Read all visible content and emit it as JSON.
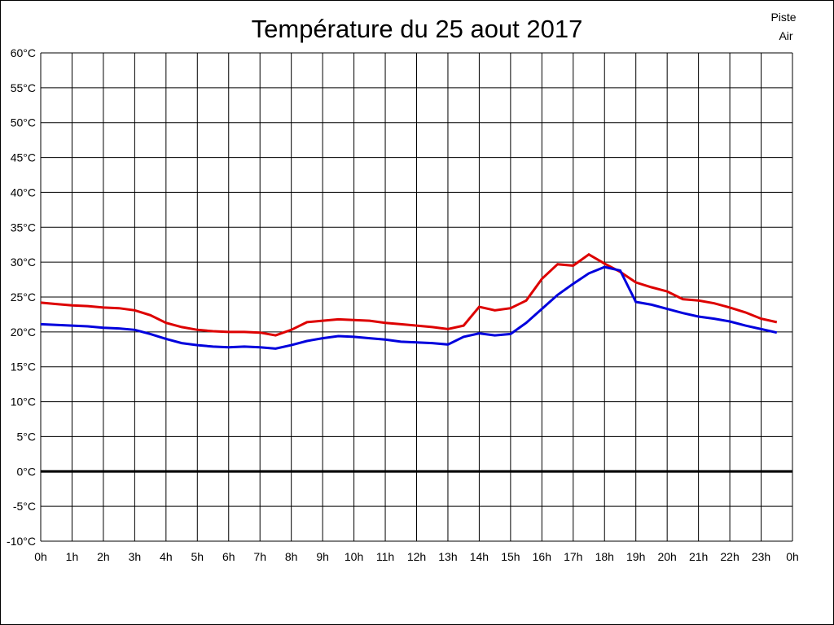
{
  "page": {
    "background": "#ffffff",
    "border_color": "#000000"
  },
  "chart_data": {
    "type": "line",
    "title": "Température du 25 aout 2017",
    "xlabel": "",
    "ylabel": "",
    "grid": true,
    "grid_color": "#000000",
    "x_min": 0,
    "x_max": 24,
    "y_min": -10,
    "y_max": 60,
    "y_tick_step": 5,
    "x_tick_labels": [
      "0h",
      "1h",
      "2h",
      "3h",
      "4h",
      "5h",
      "6h",
      "7h",
      "8h",
      "9h",
      "10h",
      "11h",
      "12h",
      "13h",
      "14h",
      "15h",
      "16h",
      "17h",
      "18h",
      "19h",
      "20h",
      "21h",
      "22h",
      "23h",
      "0h"
    ],
    "y_tick_labels": [
      "60°C",
      "55°C",
      "50°C",
      "45°C",
      "40°C",
      "35°C",
      "30°C",
      "25°C",
      "20°C",
      "15°C",
      "10°C",
      "5°C",
      "0°C",
      "-5°C",
      "-10°C"
    ],
    "zero_line": {
      "value": 0,
      "stroke_width": 3,
      "color": "#000000"
    },
    "x_start": 0,
    "x_step": 0.5,
    "legend": {
      "position": "top-right",
      "entries": [
        {
          "label": "Piste",
          "color": "#dd0000"
        },
        {
          "label": "Air",
          "color": "#0000dd"
        }
      ]
    },
    "series": [
      {
        "name": "Piste",
        "color": "#dd0000",
        "values": [
          24.2,
          24.0,
          23.8,
          23.7,
          23.5,
          23.4,
          23.1,
          22.4,
          21.3,
          20.7,
          20.3,
          20.1,
          20.0,
          20.0,
          19.9,
          19.5,
          20.3,
          21.4,
          21.6,
          21.8,
          21.7,
          21.6,
          21.3,
          21.1,
          20.9,
          20.7,
          20.4,
          20.9,
          23.6,
          23.1,
          23.4,
          24.5,
          27.6,
          29.7,
          29.5,
          31.1,
          29.8,
          28.6,
          27.1,
          26.4,
          25.8,
          24.7,
          24.5,
          24.1,
          23.5,
          22.8,
          21.9,
          21.4
        ]
      },
      {
        "name": "Air",
        "color": "#0000dd",
        "values": [
          21.1,
          21.0,
          20.9,
          20.8,
          20.6,
          20.5,
          20.3,
          19.7,
          19.0,
          18.4,
          18.1,
          17.9,
          17.8,
          17.9,
          17.8,
          17.6,
          18.1,
          18.7,
          19.1,
          19.4,
          19.3,
          19.1,
          18.9,
          18.6,
          18.5,
          18.4,
          18.2,
          19.3,
          19.8,
          19.5,
          19.7,
          21.3,
          23.3,
          25.3,
          26.9,
          28.4,
          29.3,
          28.8,
          24.3,
          23.9,
          23.3,
          22.7,
          22.2,
          21.9,
          21.5,
          20.9,
          20.4,
          19.9
        ]
      }
    ]
  }
}
